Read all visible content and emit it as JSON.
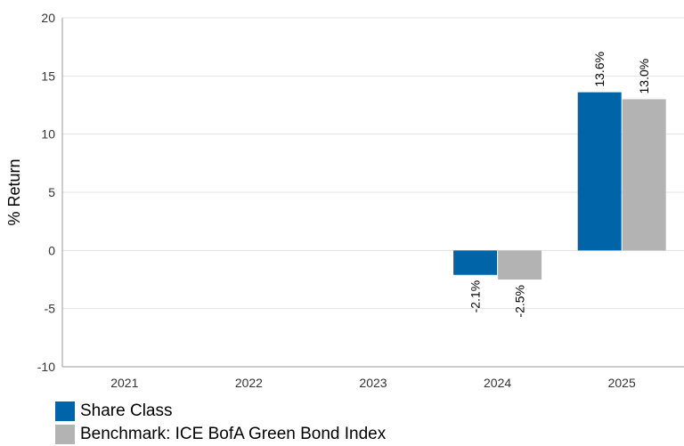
{
  "chart_data": {
    "type": "bar",
    "ylabel": "% Return",
    "ylim": [
      -10,
      20
    ],
    "yticks": [
      -10,
      -5,
      0,
      5,
      10,
      15,
      20
    ],
    "grid": true,
    "legend_position": "bottom-left",
    "categories": [
      "2021",
      "2022",
      "2023",
      "2024",
      "2025"
    ],
    "series": [
      {
        "name": "Share Class",
        "color": "#0064a8",
        "values": [
          null,
          null,
          null,
          -2.1,
          13.6
        ],
        "labels": [
          "",
          "",
          "",
          "-2.1%",
          "13.6%"
        ]
      },
      {
        "name": "Benchmark: ICE BofA Green Bond Index",
        "color": "#b3b3b3",
        "values": [
          null,
          null,
          null,
          -2.5,
          13.0
        ],
        "labels": [
          "",
          "",
          "",
          "-2.5%",
          "13.0%"
        ]
      }
    ]
  }
}
